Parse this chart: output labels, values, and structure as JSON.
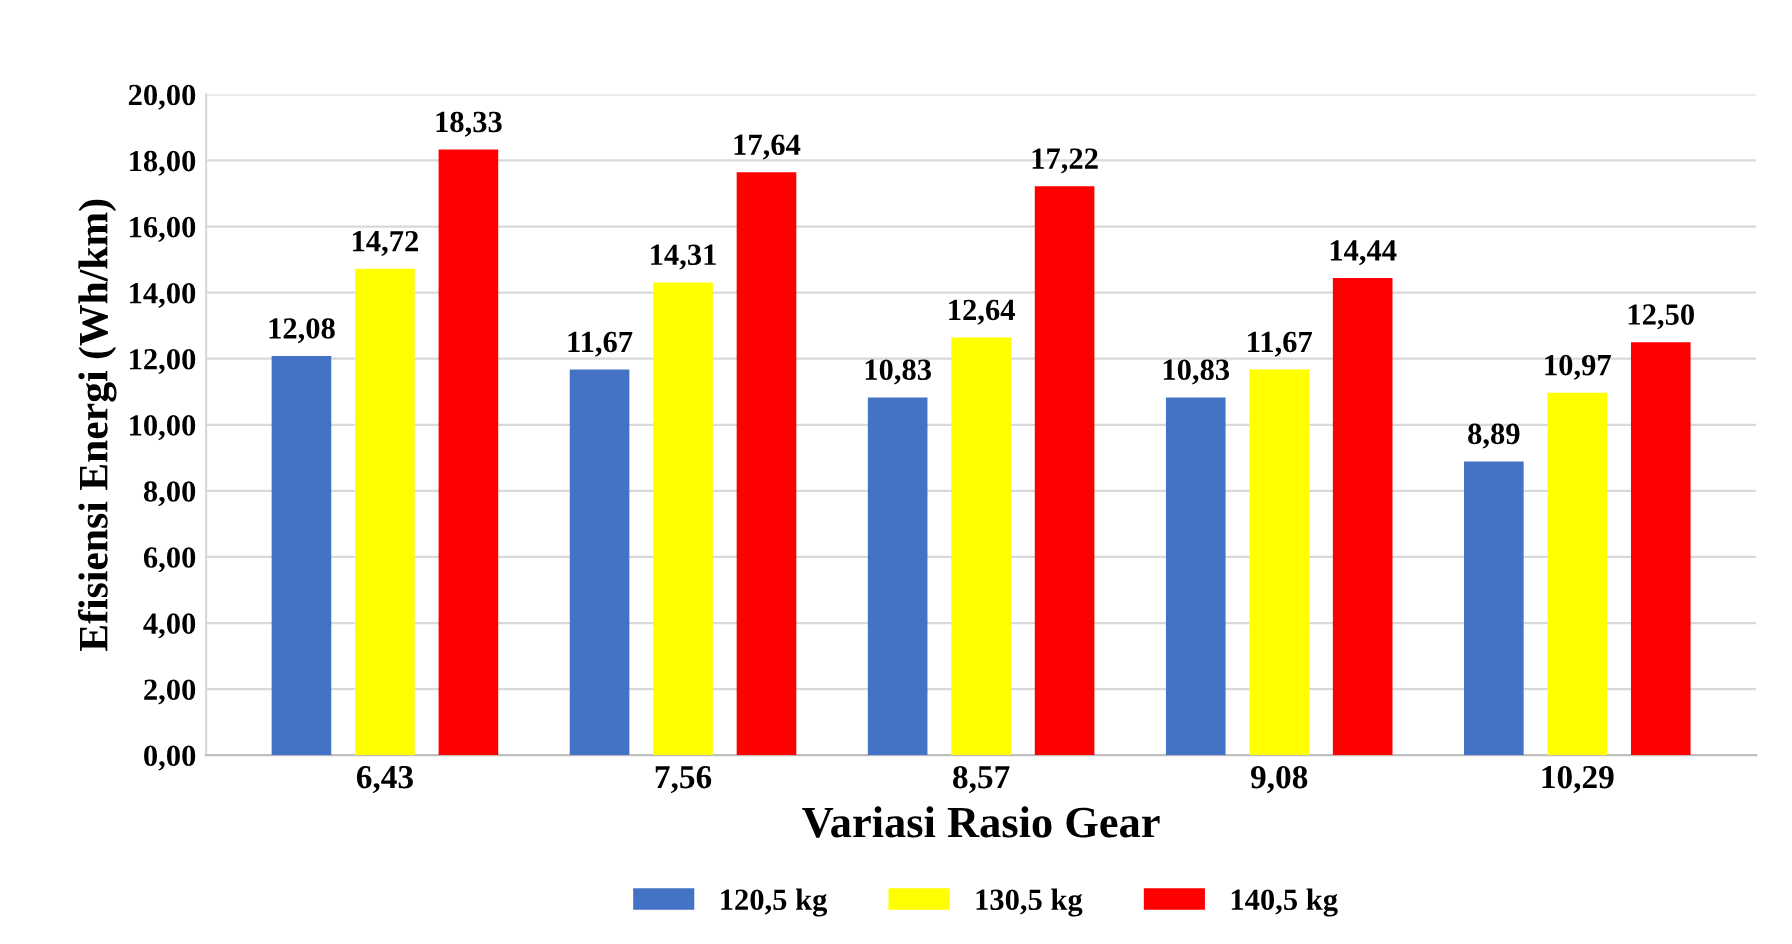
{
  "chart_data": {
    "type": "bar",
    "xlabel": "Variasi Rasio Gear",
    "ylabel": "Efisiensi Energi (Wh/km)",
    "categories": [
      "6,43",
      "7,56",
      "8,57",
      "9,08",
      "10,29"
    ],
    "series": [
      {
        "name": "120,5 kg",
        "color": "#4472c4",
        "values": [
          12.08,
          11.67,
          10.83,
          10.83,
          8.89
        ],
        "value_labels": [
          "12,08",
          "11,67",
          "10,83",
          "10,83",
          "8,89"
        ]
      },
      {
        "name": "130,5 kg",
        "color": "#ffff00",
        "values": [
          14.72,
          14.31,
          12.64,
          11.67,
          10.97
        ],
        "value_labels": [
          "14,72",
          "14,31",
          "12,64",
          "11,67",
          "10,97"
        ]
      },
      {
        "name": "140,5 kg",
        "color": "#ff0000",
        "values": [
          18.33,
          17.64,
          17.22,
          14.44,
          12.5
        ],
        "value_labels": [
          "18,33",
          "17,64",
          "17,22",
          "14,44",
          "12,50"
        ]
      }
    ],
    "ylim": [
      0,
      20
    ],
    "yticks": [
      {
        "value": 0,
        "label": "0,00"
      },
      {
        "value": 2,
        "label": "2,00"
      },
      {
        "value": 4,
        "label": "4,00"
      },
      {
        "value": 6,
        "label": "6,00"
      },
      {
        "value": 8,
        "label": "8,00"
      },
      {
        "value": 10,
        "label": "10,00"
      },
      {
        "value": 12,
        "label": "12,00"
      },
      {
        "value": 14,
        "label": "14,00"
      },
      {
        "value": 16,
        "label": "16,00"
      },
      {
        "value": 18,
        "label": "18,00"
      },
      {
        "value": 20,
        "label": "20,00"
      }
    ],
    "grid": "y",
    "legend": "bottom"
  }
}
